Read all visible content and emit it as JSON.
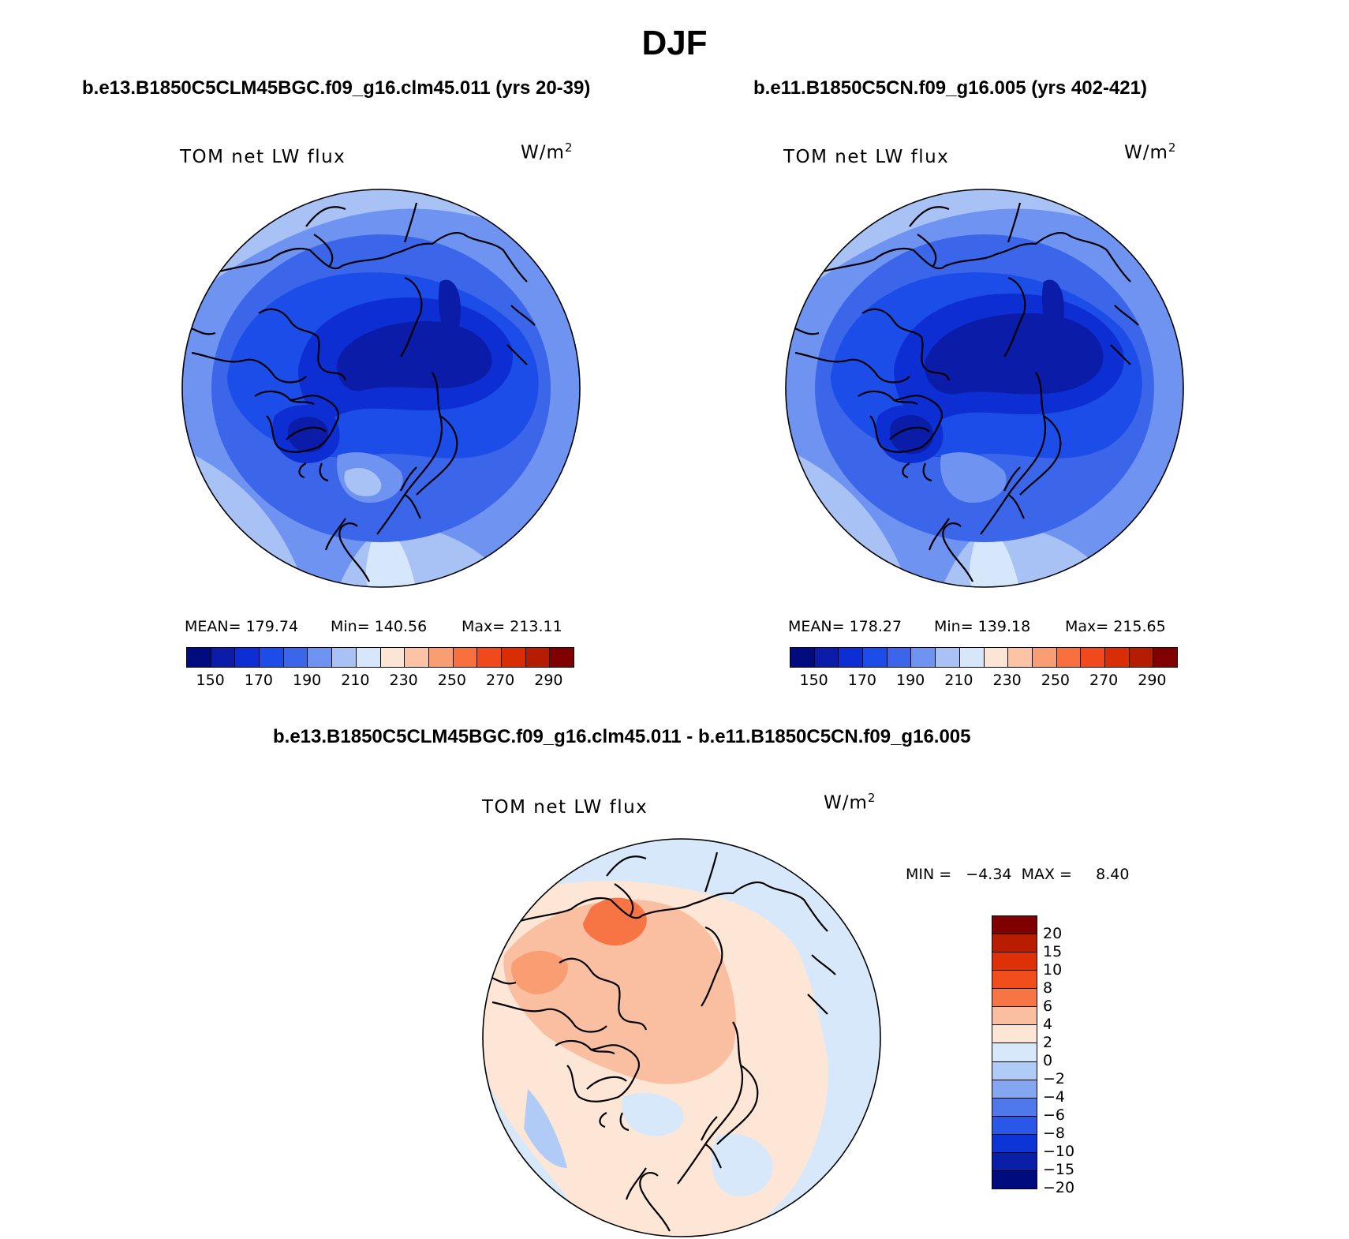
{
  "figure": {
    "title": "DJF"
  },
  "panels": [
    {
      "case": "b.e13.B1850C5CLM45BGC.f09_g16.clm45.011 (yrs 20-39)",
      "variable": "TOM net LW flux",
      "units": "W/m",
      "units_sup": "2",
      "stats": {
        "mean": "MEAN= 179.74",
        "min": "Min= 140.56",
        "max": "Max= 213.11"
      }
    },
    {
      "case": "b.e11.B1850C5CN.f09_g16.005 (yrs 402-421)",
      "variable": "TOM net LW flux",
      "units": "W/m",
      "units_sup": "2",
      "stats": {
        "mean": "MEAN= 178.27",
        "min": "Min= 139.18",
        "max": "Max= 215.65"
      }
    },
    {
      "case": "b.e13.B1850C5CLM45BGC.f09_g16.clm45.011 - b.e11.B1850C5CN.f09_g16.005",
      "variable": "TOM net LW flux",
      "units": "W/m",
      "units_sup": "2",
      "minmax": "MIN =   −4.34  MAX =     8.40"
    }
  ],
  "colorbar_abs": {
    "colors": [
      "#000b7e",
      "#0a1ca8",
      "#0d2ed3",
      "#1d4de8",
      "#3b66ea",
      "#6f93f0",
      "#a9c2f6",
      "#d6e6fb",
      "#fde5d5",
      "#fcc3a5",
      "#f99d72",
      "#f7703e",
      "#f04a1c",
      "#d92d05",
      "#b41d00",
      "#800000"
    ],
    "tick_labels": [
      "150",
      "170",
      "190",
      "210",
      "230",
      "250",
      "270",
      "290"
    ]
  },
  "colorbar_diff": {
    "colors": [
      "#800000",
      "#b91d00",
      "#e03008",
      "#f24d1c",
      "#f77545",
      "#fabfa0",
      "#fde6d6",
      "#d8e8fb",
      "#b0cbf6",
      "#84a7f0",
      "#4f78ea",
      "#2a57e6",
      "#0d34d6",
      "#0a1fa8",
      "#000b7e"
    ],
    "tick_labels": [
      "20",
      "15",
      "10",
      "8",
      "6",
      "4",
      "2",
      "0",
      "−2",
      "−4",
      "−6",
      "−8",
      "−10",
      "−15",
      "−20"
    ]
  }
}
